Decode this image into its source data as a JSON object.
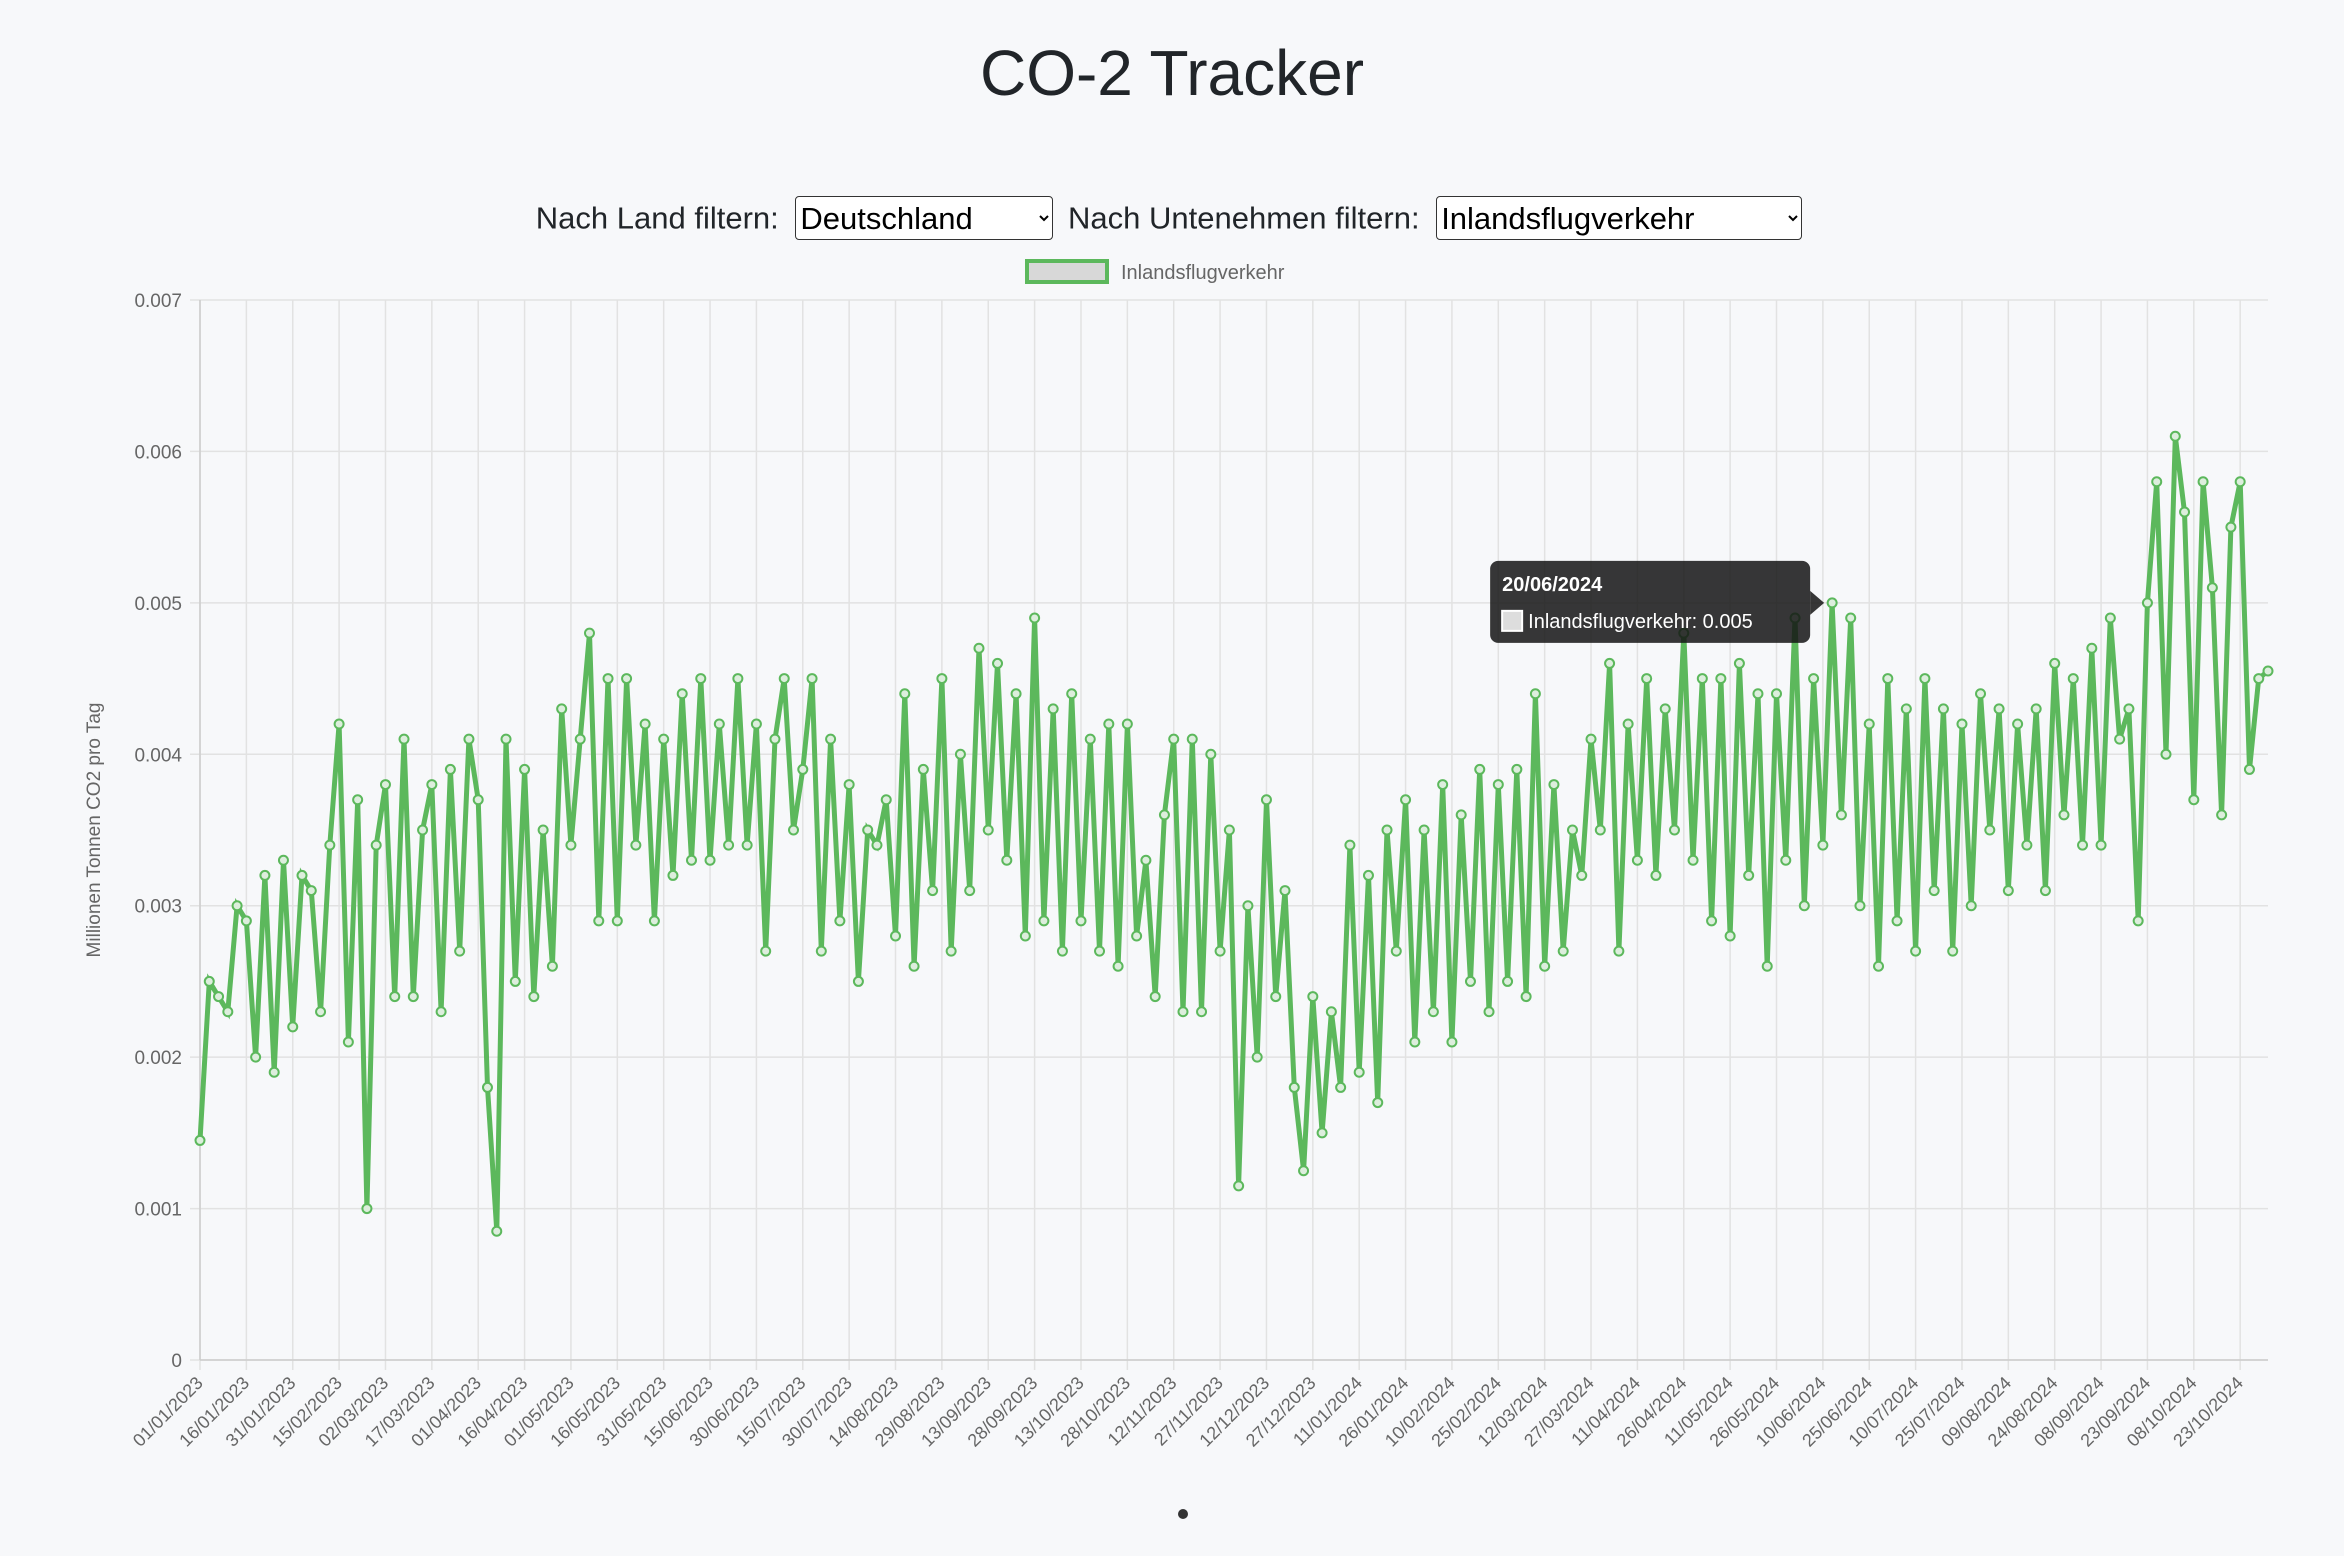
{
  "header": {
    "title": "CO-2 Tracker"
  },
  "filters": [
    {
      "label": "Nach Land filtern:",
      "selected": "Deutschland"
    },
    {
      "label": "Nach Untenehmen filtern:",
      "selected": "Inlandsflugverkehr"
    }
  ],
  "chart_data": {
    "type": "line",
    "y_label": "Millionen Tonnen CO2 pro Tag",
    "legend": "top",
    "grid": true,
    "ylim": [
      0,
      0.007
    ],
    "yticks": [
      0,
      0.001,
      0.002,
      0.003,
      0.004,
      0.005,
      0.006,
      0.007
    ],
    "categories": [
      "01/01/2023",
      null,
      null,
      null,
      null,
      "16/01/2023",
      null,
      null,
      null,
      null,
      "31/01/2023",
      null,
      null,
      null,
      null,
      "15/02/2023",
      null,
      null,
      null,
      null,
      "02/03/2023",
      null,
      null,
      null,
      null,
      "17/03/2023",
      null,
      null,
      null,
      null,
      "01/04/2023",
      null,
      null,
      null,
      null,
      "16/04/2023",
      null,
      null,
      null,
      null,
      "01/05/2023",
      null,
      null,
      null,
      null,
      "16/05/2023",
      null,
      null,
      null,
      null,
      "31/05/2023",
      null,
      null,
      null,
      null,
      "15/06/2023",
      null,
      null,
      null,
      null,
      "30/06/2023",
      null,
      null,
      null,
      null,
      "15/07/2023",
      null,
      null,
      null,
      null,
      "30/07/2023",
      null,
      null,
      null,
      null,
      "14/08/2023",
      null,
      null,
      null,
      null,
      "29/08/2023",
      null,
      null,
      null,
      null,
      "13/09/2023",
      null,
      null,
      null,
      null,
      "28/09/2023",
      null,
      null,
      null,
      null,
      "13/10/2023",
      null,
      null,
      null,
      null,
      "28/10/2023",
      null,
      null,
      null,
      null,
      "12/11/2023",
      null,
      null,
      null,
      null,
      "27/11/2023",
      null,
      null,
      null,
      null,
      "12/12/2023",
      null,
      null,
      null,
      null,
      "27/12/2023",
      null,
      null,
      null,
      null,
      "11/01/2024",
      null,
      null,
      null,
      null,
      "26/01/2024",
      null,
      null,
      null,
      null,
      "10/02/2024",
      null,
      null,
      null,
      null,
      "25/02/2024",
      null,
      null,
      null,
      null,
      "12/03/2024",
      null,
      null,
      null,
      null,
      "27/03/2024",
      null,
      null,
      null,
      null,
      "11/04/2024",
      null,
      null,
      null,
      null,
      "26/04/2024",
      null,
      null,
      null,
      null,
      "11/05/2024",
      null,
      null,
      null,
      null,
      "26/05/2024",
      null,
      null,
      null,
      null,
      "10/06/2024",
      null,
      null,
      null,
      null,
      "25/06/2024",
      null,
      null,
      null,
      null,
      "10/07/2024",
      null,
      null,
      null,
      null,
      "25/07/2024",
      null,
      null,
      null,
      null,
      "09/08/2024",
      null,
      null,
      null,
      null,
      "24/08/2024",
      null,
      null,
      null,
      null,
      "08/09/2024",
      null,
      null,
      null,
      null,
      "23/09/2024",
      null,
      null,
      null,
      null,
      "08/10/2024",
      null,
      null,
      null,
      null,
      "23/10/2024",
      null,
      null,
      null
    ],
    "series": [
      {
        "name": "Inlandsflugverkehr",
        "color": "#5cb85c",
        "values": [
          0.00145,
          0.0025,
          0.0024,
          0.0023,
          0.003,
          0.0029,
          0.002,
          0.0032,
          0.0019,
          0.0033,
          0.0022,
          0.0032,
          0.0031,
          0.0023,
          0.0034,
          0.0042,
          0.0021,
          0.0037,
          0.001,
          0.0034,
          0.0038,
          0.0024,
          0.0041,
          0.0024,
          0.0035,
          0.0038,
          0.0023,
          0.0039,
          0.0027,
          0.0041,
          0.0037,
          0.0018,
          0.00085,
          0.0041,
          0.0025,
          0.0039,
          0.0024,
          0.0035,
          0.0026,
          0.0043,
          0.0034,
          0.0041,
          0.0048,
          0.0029,
          0.0045,
          0.0029,
          0.0045,
          0.0034,
          0.0042,
          0.0029,
          0.0041,
          0.0032,
          0.0044,
          0.0033,
          0.0045,
          0.0033,
          0.0042,
          0.0034,
          0.0045,
          0.0034,
          0.0042,
          0.0027,
          0.0041,
          0.0045,
          0.0035,
          0.0039,
          0.0045,
          0.0027,
          0.0041,
          0.0029,
          0.0038,
          0.0025,
          0.0035,
          0.0034,
          0.0037,
          0.0028,
          0.0044,
          0.0026,
          0.0039,
          0.0031,
          0.0045,
          0.0027,
          0.004,
          0.0031,
          0.0047,
          0.0035,
          0.0046,
          0.0033,
          0.0044,
          0.0028,
          0.0049,
          0.0029,
          0.0043,
          0.0027,
          0.0044,
          0.0029,
          0.0041,
          0.0027,
          0.0042,
          0.0026,
          0.0042,
          0.0028,
          0.0033,
          0.0024,
          0.0036,
          0.0041,
          0.0023,
          0.0041,
          0.0023,
          0.004,
          0.0027,
          0.0035,
          0.00115,
          0.003,
          0.002,
          0.0037,
          0.0024,
          0.0031,
          0.0018,
          0.00125,
          0.0024,
          0.0015,
          0.0023,
          0.0018,
          0.0034,
          0.0019,
          0.0032,
          0.0017,
          0.0035,
          0.0027,
          0.0037,
          0.0021,
          0.0035,
          0.0023,
          0.0038,
          0.0021,
          0.0036,
          0.0025,
          0.0039,
          0.0023,
          0.0038,
          0.0025,
          0.0039,
          0.0024,
          0.0044,
          0.0026,
          0.0038,
          0.0027,
          0.0035,
          0.0032,
          0.0041,
          0.0035,
          0.0046,
          0.0027,
          0.0042,
          0.0033,
          0.0045,
          0.0032,
          0.0043,
          0.0035,
          0.0048,
          0.0033,
          0.0045,
          0.0029,
          0.0045,
          0.0028,
          0.0046,
          0.0032,
          0.0044,
          0.0026,
          0.0044,
          0.0033,
          0.0049,
          0.003,
          0.0045,
          0.0034,
          0.005,
          0.0036,
          0.0049,
          0.003,
          0.0042,
          0.0026,
          0.0045,
          0.0029,
          0.0043,
          0.0027,
          0.0045,
          0.0031,
          0.0043,
          0.0027,
          0.0042,
          0.003,
          0.0044,
          0.0035,
          0.0043,
          0.0031,
          0.0042,
          0.0034,
          0.0043,
          0.0031,
          0.0046,
          0.0036,
          0.0045,
          0.0034,
          0.0047,
          0.0034,
          0.0049,
          0.0041,
          0.0043,
          0.0029,
          0.005,
          0.0058,
          0.004,
          0.0061,
          0.0056,
          0.0037,
          0.0058,
          0.0051,
          0.0036,
          0.0055,
          0.0058,
          0.0039,
          0.0045,
          0.00455
        ]
      }
    ],
    "tooltip": {
      "title": "20/06/2024",
      "label": "Inlandsflugverkehr: 0.005"
    }
  }
}
